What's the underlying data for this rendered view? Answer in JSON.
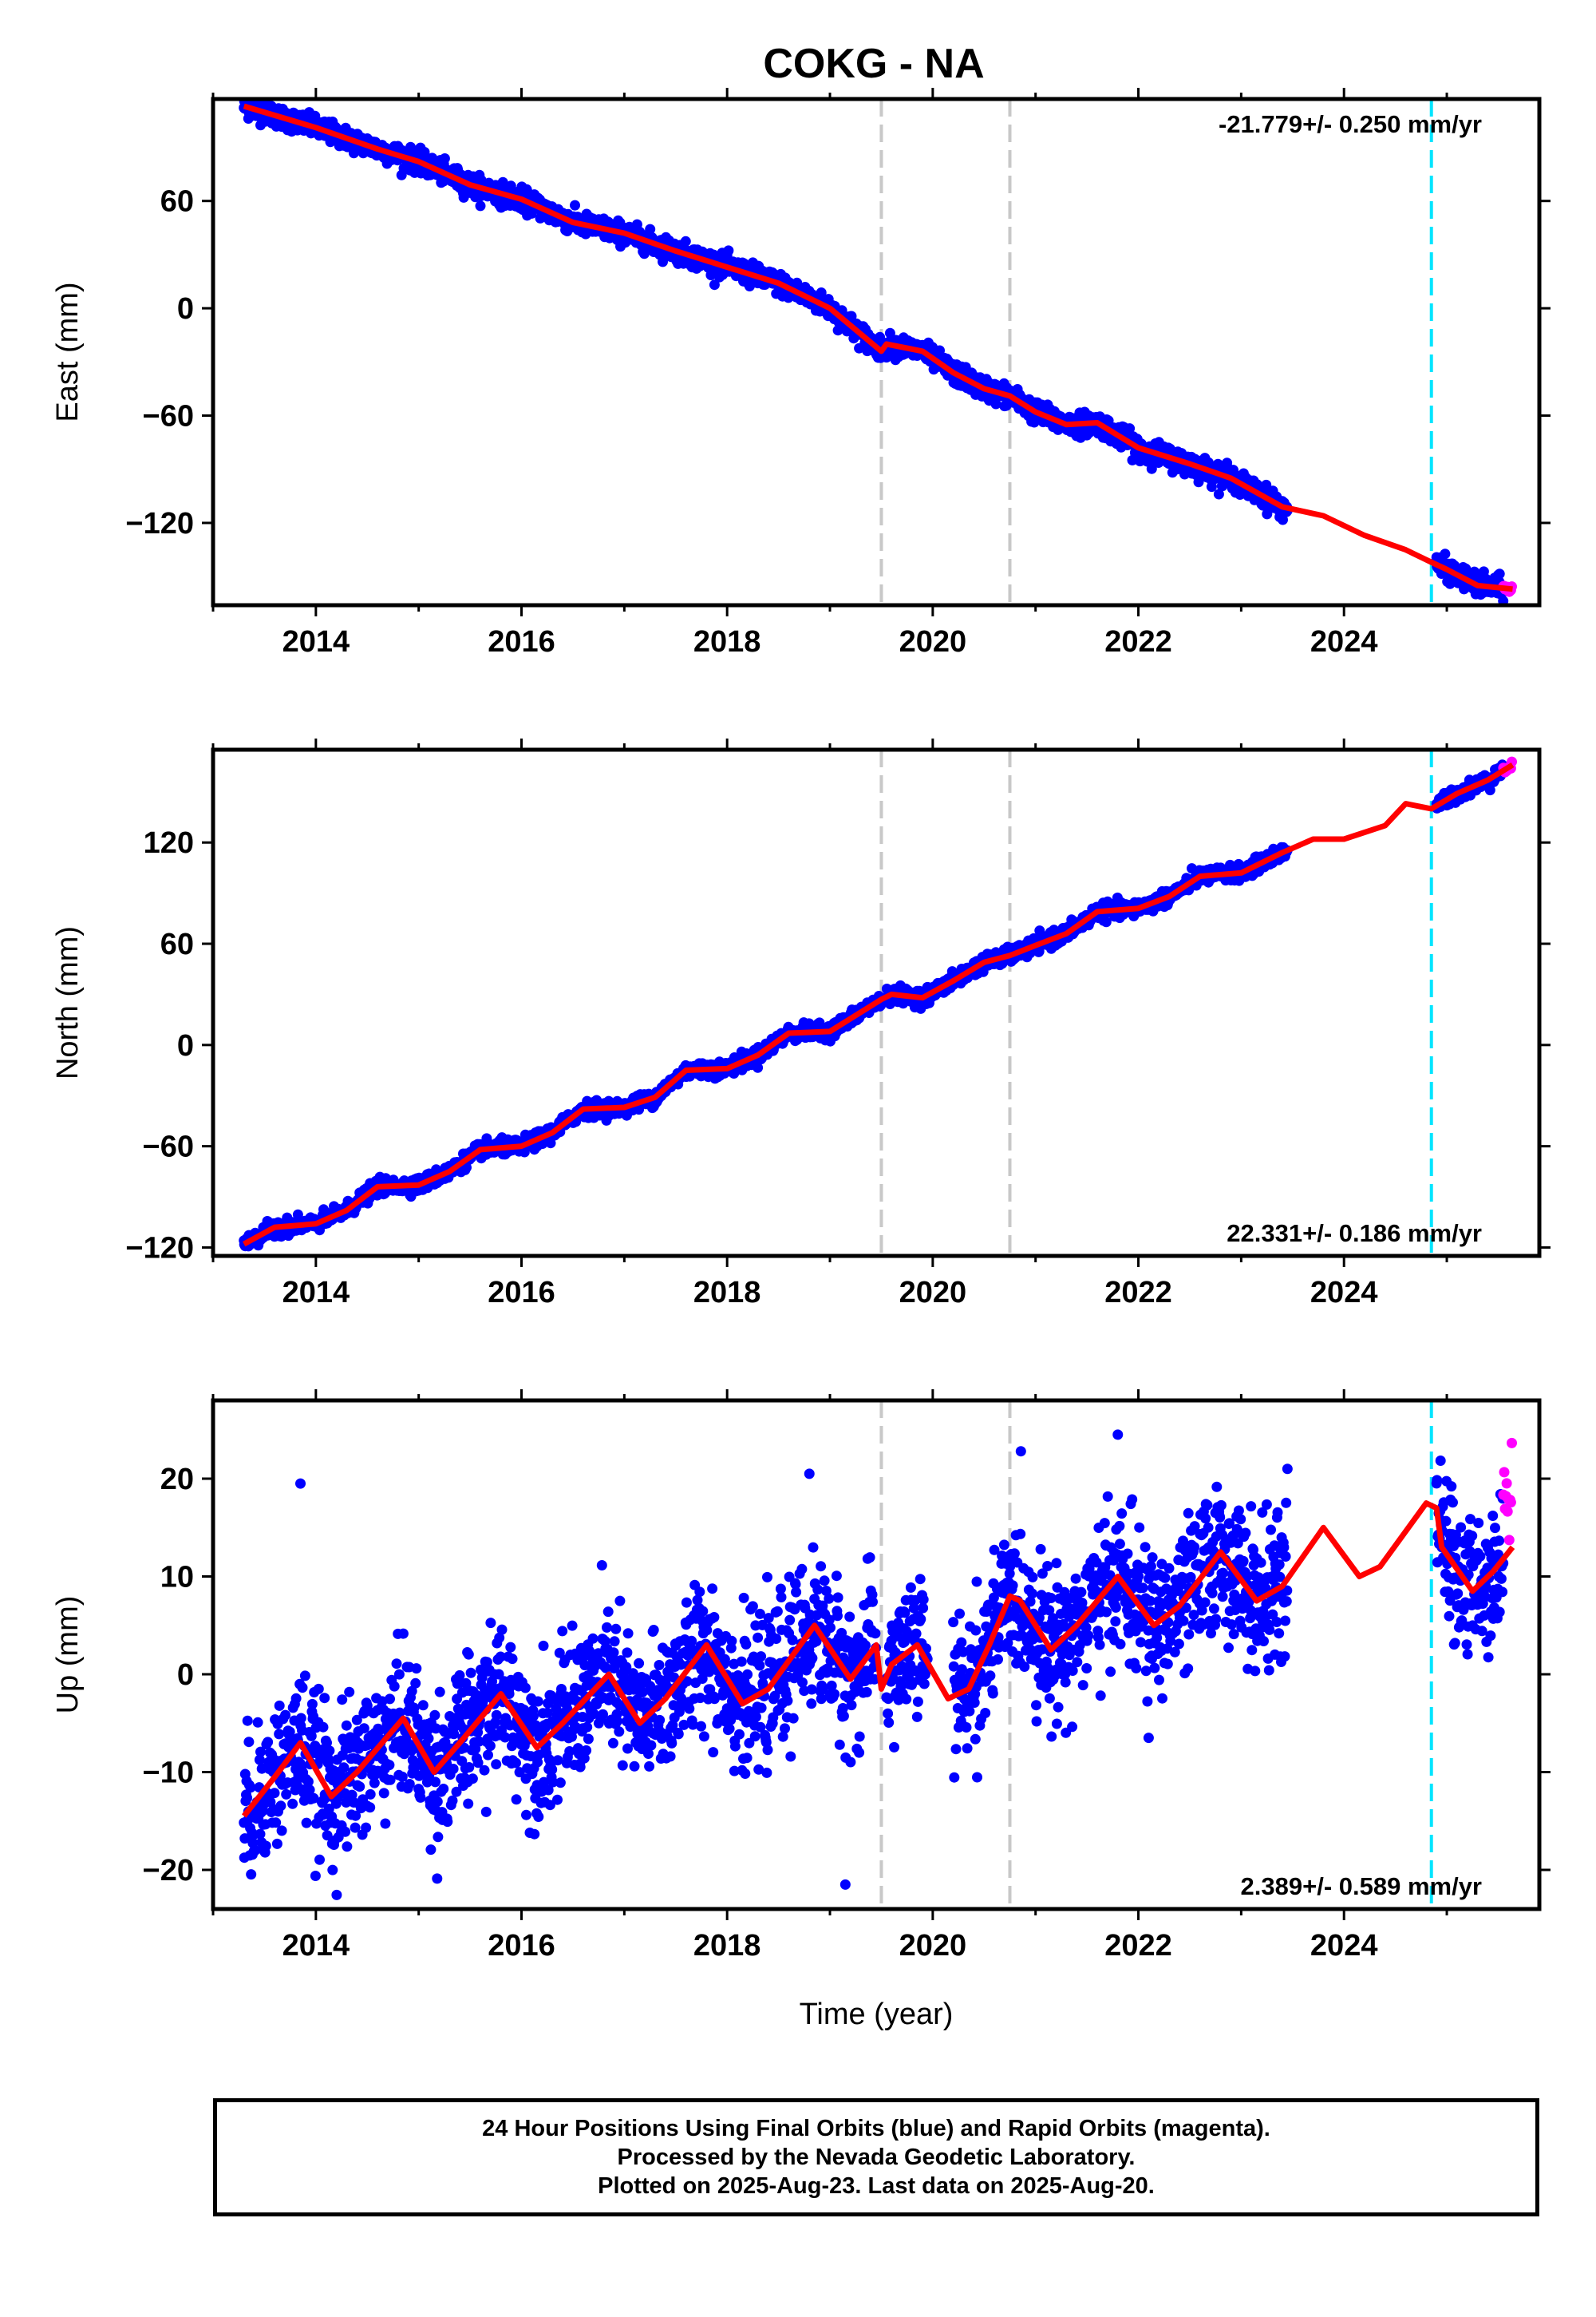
{
  "title": "COKG - NA",
  "xlabel": "Time (year)",
  "colors": {
    "final_orbits": "#0000ff",
    "rapid_orbits": "#ff00ff",
    "model": "#ff0000",
    "offset_line": "#c8c8c8",
    "antenna_line": "#00e5ff"
  },
  "x_ticks": [
    "2014",
    "2016",
    "2018",
    "2020",
    "2022",
    "2024"
  ],
  "caption": {
    "line1": "24 Hour Positions Using Final Orbits (blue) and Rapid Orbits (magenta).",
    "line2": "Processed by the Nevada Geodetic Laboratory.",
    "line3": "Plotted on 2025-Aug-23. Last data on 2025-Aug-20."
  },
  "chart_data": [
    {
      "type": "scatter",
      "component": "East",
      "ylabel": "East (mm)",
      "rate_label": "-21.779+/- 0.250 mm/yr",
      "rate_position": "top-right",
      "xlim": [
        2013.0,
        2025.9
      ],
      "ylim": [
        -166,
        117
      ],
      "y_ticks": [
        {
          "value": 60,
          "label": "60"
        },
        {
          "value": 0,
          "label": "0"
        },
        {
          "value": -60,
          "label": "−60"
        },
        {
          "value": -120,
          "label": "−120"
        }
      ],
      "gray_lines": [
        2019.5,
        2020.75
      ],
      "cyan_lines": [
        2024.85
      ],
      "trend": {
        "t0": 2013.3,
        "v0": 113,
        "rate": -21.779
      },
      "seasonal": {
        "amp": 2.5,
        "phase": 0.3
      },
      "noise": 3.0,
      "data_ranges": [
        [
          2013.3,
          2019.5
        ],
        [
          2019.55,
          2023.45
        ],
        [
          2024.9,
          2025.55
        ]
      ],
      "rapid_range": [
        2025.55,
        2025.64
      ],
      "model": [
        [
          2013.3,
          113
        ],
        [
          2014.0,
          101
        ],
        [
          2014.6,
          89
        ],
        [
          2015.0,
          82
        ],
        [
          2015.5,
          69
        ],
        [
          2016.0,
          61
        ],
        [
          2016.5,
          48
        ],
        [
          2017.0,
          42
        ],
        [
          2017.5,
          32
        ],
        [
          2018.0,
          23
        ],
        [
          2018.5,
          14
        ],
        [
          2019.0,
          0
        ],
        [
          2019.5,
          -24
        ],
        [
          2019.55,
          -20
        ],
        [
          2019.9,
          -24
        ],
        [
          2020.2,
          -36
        ],
        [
          2020.5,
          -45
        ],
        [
          2020.75,
          -49
        ],
        [
          2021.0,
          -58
        ],
        [
          2021.3,
          -65
        ],
        [
          2021.6,
          -64
        ],
        [
          2022.0,
          -78
        ],
        [
          2022.5,
          -87
        ],
        [
          2022.9,
          -95
        ],
        [
          2023.4,
          -111
        ],
        [
          2023.8,
          -116
        ],
        [
          2024.2,
          -127
        ],
        [
          2024.6,
          -135
        ],
        [
          2024.85,
          -142
        ],
        [
          2025.0,
          -146
        ],
        [
          2025.3,
          -155
        ],
        [
          2025.64,
          -157
        ]
      ]
    },
    {
      "type": "scatter",
      "component": "North",
      "ylabel": "North (mm)",
      "rate_label": "22.331+/- 0.186 mm/yr",
      "rate_position": "bottom-right",
      "xlim": [
        2013.0,
        2025.9
      ],
      "ylim": [
        -125,
        175
      ],
      "y_ticks": [
        {
          "value": 120,
          "label": "120"
        },
        {
          "value": 60,
          "label": "60"
        },
        {
          "value": 0,
          "label": "0"
        },
        {
          "value": -60,
          "label": "−60"
        },
        {
          "value": -120,
          "label": "−120"
        }
      ],
      "gray_lines": [
        2019.5,
        2020.75
      ],
      "cyan_lines": [
        2024.85
      ],
      "trend": {
        "t0": 2013.3,
        "v0": -118,
        "rate": 22.331
      },
      "seasonal": {
        "amp": 3.0,
        "phase": 0.6
      },
      "noise": 2.2,
      "data_ranges": [
        [
          2013.3,
          2019.5
        ],
        [
          2019.55,
          2023.45
        ],
        [
          2024.9,
          2025.55
        ]
      ],
      "rapid_range": [
        2025.55,
        2025.64
      ],
      "model": [
        [
          2013.3,
          -118
        ],
        [
          2013.6,
          -108
        ],
        [
          2014.0,
          -106
        ],
        [
          2014.3,
          -98
        ],
        [
          2014.6,
          -84
        ],
        [
          2015.0,
          -83
        ],
        [
          2015.3,
          -75
        ],
        [
          2015.6,
          -62
        ],
        [
          2016.0,
          -60
        ],
        [
          2016.3,
          -52
        ],
        [
          2016.6,
          -38
        ],
        [
          2017.0,
          -37
        ],
        [
          2017.3,
          -31
        ],
        [
          2017.6,
          -15
        ],
        [
          2018.0,
          -14
        ],
        [
          2018.3,
          -6
        ],
        [
          2018.6,
          7
        ],
        [
          2019.0,
          8
        ],
        [
          2019.5,
          27
        ],
        [
          2019.6,
          30
        ],
        [
          2019.9,
          28
        ],
        [
          2020.2,
          38
        ],
        [
          2020.5,
          49
        ],
        [
          2020.75,
          53
        ],
        [
          2021.0,
          59
        ],
        [
          2021.3,
          66
        ],
        [
          2021.6,
          79
        ],
        [
          2022.0,
          81
        ],
        [
          2022.3,
          88
        ],
        [
          2022.6,
          100
        ],
        [
          2023.0,
          102
        ],
        [
          2023.4,
          114
        ],
        [
          2023.7,
          122
        ],
        [
          2024.0,
          122
        ],
        [
          2024.4,
          130
        ],
        [
          2024.6,
          143
        ],
        [
          2024.85,
          140
        ],
        [
          2025.1,
          149
        ],
        [
          2025.4,
          157
        ],
        [
          2025.64,
          166
        ]
      ]
    },
    {
      "type": "scatter",
      "component": "Up",
      "ylabel": "Up (mm)",
      "rate_label": "2.389+/- 0.589 mm/yr",
      "rate_position": "bottom-right",
      "xlim": [
        2013.0,
        2025.9
      ],
      "ylim": [
        -24,
        28
      ],
      "y_ticks": [
        {
          "value": 20,
          "label": "20"
        },
        {
          "value": 10,
          "label": "10"
        },
        {
          "value": 0,
          "label": "0"
        },
        {
          "value": -10,
          "label": "−10"
        },
        {
          "value": -20,
          "label": "−20"
        }
      ],
      "gray_lines": [
        2019.5,
        2020.75
      ],
      "cyan_lines": [
        2024.85
      ],
      "noise": 3.6,
      "data_ranges": [
        [
          2013.3,
          2019.45
        ],
        [
          2019.55,
          2019.95
        ],
        [
          2020.2,
          2023.45
        ],
        [
          2024.9,
          2025.55
        ]
      ],
      "rapid_range": [
        2025.55,
        2025.64
      ],
      "model": [
        [
          2013.3,
          -14.5
        ],
        [
          2013.6,
          -10.5
        ],
        [
          2013.85,
          -7
        ],
        [
          2014.15,
          -12.5
        ],
        [
          2014.4,
          -10
        ],
        [
          2014.85,
          -4.5
        ],
        [
          2015.15,
          -10
        ],
        [
          2015.4,
          -7
        ],
        [
          2015.8,
          -2
        ],
        [
          2016.15,
          -7.5
        ],
        [
          2016.4,
          -5
        ],
        [
          2016.85,
          0
        ],
        [
          2017.15,
          -5
        ],
        [
          2017.4,
          -2.5
        ],
        [
          2017.8,
          3
        ],
        [
          2018.15,
          -3
        ],
        [
          2018.4,
          -1.5
        ],
        [
          2018.85,
          5
        ],
        [
          2019.2,
          -0.5
        ],
        [
          2019.45,
          3
        ],
        [
          2019.5,
          -1.5
        ],
        [
          2019.6,
          1
        ],
        [
          2019.85,
          3
        ],
        [
          2020.15,
          -2.5
        ],
        [
          2020.35,
          -1.5
        ],
        [
          2020.55,
          3
        ],
        [
          2020.75,
          8
        ],
        [
          2020.85,
          7.5
        ],
        [
          2021.15,
          2.5
        ],
        [
          2021.4,
          5
        ],
        [
          2021.8,
          10
        ],
        [
          2022.15,
          5
        ],
        [
          2022.4,
          7
        ],
        [
          2022.8,
          12.5
        ],
        [
          2023.15,
          7.5
        ],
        [
          2023.4,
          9
        ],
        [
          2023.8,
          15
        ],
        [
          2024.15,
          10
        ],
        [
          2024.35,
          11
        ],
        [
          2024.8,
          17.5
        ],
        [
          2024.9,
          17
        ],
        [
          2024.95,
          13
        ],
        [
          2025.25,
          8.5
        ],
        [
          2025.45,
          10.5
        ],
        [
          2025.64,
          13
        ]
      ],
      "outliers": [
        [
          2013.85,
          19.5
        ],
        [
          2018.8,
          20.5
        ],
        [
          2019.15,
          -21.5
        ],
        [
          2021.8,
          24.5
        ],
        [
          2022.1,
          -6.5
        ],
        [
          2023.45,
          21
        ]
      ]
    }
  ]
}
